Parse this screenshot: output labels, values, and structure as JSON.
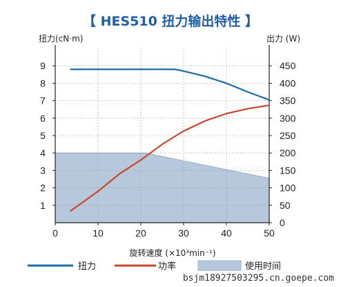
{
  "chart_data": {
    "type": "line",
    "title": "【 HES510  扭力输出特性 】",
    "y_left_label": "扭力(cN·m)",
    "y_right_label": "出力 (W)",
    "xlabel": "旋转速度 (×10³min⁻¹)",
    "xlim": [
      0,
      50
    ],
    "ylim_left": [
      0,
      10
    ],
    "ylim_right": [
      0,
      500
    ],
    "x_ticks": [
      "0",
      "10",
      "20",
      "30",
      "40",
      "50"
    ],
    "y_left_ticks": [
      "1",
      "2",
      "3",
      "4",
      "5",
      "6",
      "7",
      "8",
      "9"
    ],
    "y_right_ticks": [
      "0",
      "50",
      "100",
      "150",
      "200",
      "250",
      "300",
      "350",
      "400",
      "450"
    ],
    "grid": true,
    "series": [
      {
        "name": "扭力",
        "axis": "left",
        "color": "#1a6ea3",
        "x": [
          3.5,
          10,
          20,
          28,
          30,
          35,
          40,
          45,
          50
        ],
        "y": [
          8.8,
          8.8,
          8.8,
          8.8,
          8.7,
          8.4,
          8.0,
          7.5,
          7.05
        ]
      },
      {
        "name": "功率",
        "axis": "right",
        "color": "#c9472a",
        "x": [
          3.5,
          10,
          15,
          20,
          25,
          30,
          35,
          40,
          45,
          50
        ],
        "y": [
          33,
          90,
          140,
          180,
          225,
          263,
          292,
          313,
          327,
          337
        ]
      },
      {
        "name": "使用时间",
        "axis": "left",
        "kind": "area",
        "color": "#b7c7dc",
        "x": [
          0,
          21,
          50
        ],
        "y": [
          4.0,
          4.0,
          2.55
        ]
      }
    ],
    "legend": [
      "扭力",
      "功率",
      "使用时间"
    ],
    "legend_position": "bottom"
  },
  "watermark": "bsjm18927503295.cn.goepe.com"
}
